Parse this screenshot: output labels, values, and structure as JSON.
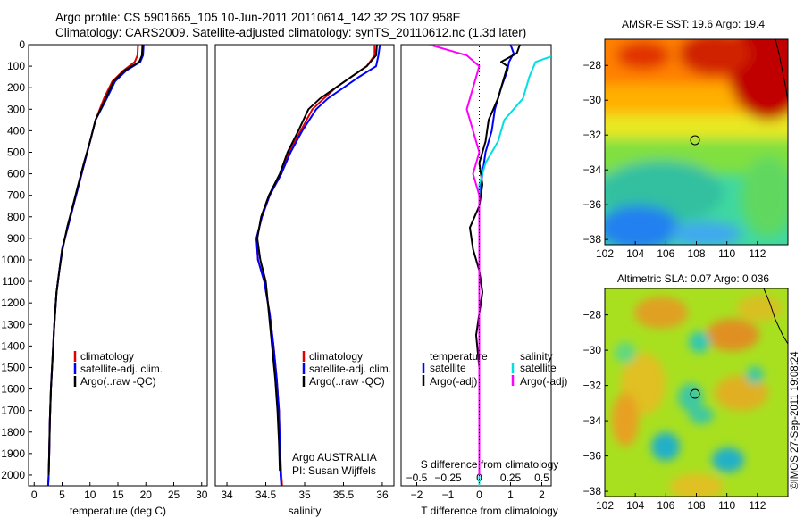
{
  "header": {
    "line1": "Argo profile: CS 5901665_105 10-Jun-2011 20110614_142 32.2S 107.958E",
    "line2": "Climatology: CARS2009. Satellite-adjusted climatology: synTS_20110612.nc (1.3d later)"
  },
  "colors": {
    "climatology": "#e00000",
    "satellite": "#0000ff",
    "argo": "#000000",
    "salinity_satellite": "#00e0e0",
    "salinity_argo": "#ff00ff"
  },
  "chart_data": [
    {
      "type": "line",
      "xlabel": "temperature (deg C)",
      "ylabel": "",
      "xlim": [
        -1,
        31
      ],
      "ylim": [
        2050,
        0
      ],
      "xticks": [
        0,
        5,
        10,
        15,
        20,
        25,
        30
      ],
      "yticks": [
        0,
        100,
        200,
        300,
        400,
        500,
        600,
        700,
        800,
        900,
        1000,
        1100,
        1200,
        1300,
        1400,
        1500,
        1600,
        1700,
        1800,
        1900,
        2000
      ],
      "legend": [
        "climatology",
        "satellite-adj. clim.",
        "Argo(..raw -QC)"
      ],
      "legend_position": "lower-center",
      "series": [
        {
          "name": "climatology",
          "x": [
            18.6,
            18.5,
            18.0,
            16.0,
            14.0,
            12.5,
            11.0,
            10.0,
            9.0,
            8.0,
            7.0,
            6.0,
            5.0,
            4.5,
            4.0,
            3.6,
            3.3,
            3.0,
            2.8,
            2.7,
            2.6,
            2.5
          ],
          "y": [
            0,
            50,
            80,
            120,
            170,
            250,
            350,
            450,
            550,
            650,
            750,
            850,
            950,
            1050,
            1150,
            1300,
            1450,
            1600,
            1750,
            1900,
            2000,
            2050
          ]
        },
        {
          "name": "satellite-adj. clim.",
          "x": [
            19.6,
            19.5,
            19.0,
            16.5,
            14.5,
            13.0,
            11.0,
            10.0,
            9.0,
            8.0,
            7.0,
            6.0,
            5.0,
            4.5,
            4.0,
            3.6,
            3.3,
            3.0,
            2.8,
            2.7,
            2.6,
            2.5
          ],
          "y": [
            0,
            50,
            80,
            120,
            170,
            250,
            350,
            450,
            550,
            650,
            750,
            850,
            950,
            1050,
            1150,
            1300,
            1450,
            1600,
            1750,
            1900,
            2000,
            2050
          ]
        },
        {
          "name": "Argo(..raw -QC)",
          "x": [
            19.4,
            19.3,
            18.8,
            16.2,
            14.2,
            12.8,
            11.0,
            10.0,
            8.9,
            7.9,
            6.9,
            5.9,
            5.1,
            4.5,
            4.0,
            3.6,
            3.3,
            3.0,
            2.8,
            2.7,
            2.6
          ],
          "y": [
            0,
            50,
            80,
            120,
            170,
            250,
            350,
            450,
            550,
            650,
            750,
            850,
            950,
            1050,
            1150,
            1300,
            1450,
            1600,
            1750,
            1900,
            2000
          ]
        }
      ]
    },
    {
      "type": "line",
      "xlabel": "salinity",
      "ylabel": "",
      "xlim": [
        33.85,
        36.15
      ],
      "ylim": [
        2050,
        0
      ],
      "xticks": [
        34,
        34.5,
        35,
        35.5,
        36
      ],
      "legend": [
        "climatology",
        "satellite-adj. clim.",
        "Argo(..raw -QC)"
      ],
      "legend_position": "lower-center",
      "annotation": [
        "Argo AUSTRALIA",
        "PI: Susan Wijffels"
      ],
      "series": [
        {
          "name": "climatology",
          "x": [
            35.9,
            35.9,
            35.8,
            35.6,
            35.4,
            35.25,
            35.1,
            34.95,
            34.8,
            34.7,
            34.55,
            34.45,
            34.38,
            34.4,
            34.48,
            34.55,
            34.6,
            34.64,
            34.67,
            34.68,
            34.7,
            34.71
          ],
          "y": [
            0,
            50,
            100,
            150,
            200,
            250,
            300,
            400,
            500,
            600,
            700,
            800,
            900,
            1000,
            1100,
            1250,
            1400,
            1550,
            1700,
            1850,
            2000,
            2050
          ]
        },
        {
          "name": "satellite-adj. clim.",
          "x": [
            35.97,
            35.95,
            35.92,
            35.7,
            35.5,
            35.3,
            35.15,
            34.97,
            34.82,
            34.7,
            34.55,
            34.45,
            34.38,
            34.4,
            34.48,
            34.55,
            34.6,
            34.64,
            34.67,
            34.68,
            34.69,
            34.7
          ],
          "y": [
            0,
            50,
            100,
            150,
            200,
            250,
            300,
            400,
            500,
            600,
            700,
            800,
            900,
            1000,
            1100,
            1250,
            1400,
            1550,
            1700,
            1850,
            2000,
            2050
          ]
        },
        {
          "name": "Argo(..raw -QC)",
          "x": [
            35.93,
            35.92,
            35.8,
            35.6,
            35.4,
            35.2,
            35.05,
            34.92,
            34.78,
            34.68,
            34.54,
            34.44,
            34.39,
            34.43,
            34.5,
            34.54,
            34.58,
            34.62,
            34.65,
            34.67,
            34.68
          ],
          "y": [
            0,
            50,
            100,
            150,
            200,
            250,
            300,
            400,
            500,
            600,
            700,
            800,
            900,
            1000,
            1100,
            1250,
            1400,
            1550,
            1700,
            1850,
            1980
          ]
        }
      ]
    },
    {
      "type": "line",
      "xlabel": "T difference from climatology",
      "x2label": "S difference from climatology",
      "xlim": [
        -2.5,
        2.3
      ],
      "x2lim": [
        -0.625,
        0.575
      ],
      "ylim": [
        2050,
        0
      ],
      "xticks": [
        -2,
        -1,
        0,
        1,
        2
      ],
      "x2ticks": [
        -0.5,
        -0.25,
        0,
        0.25,
        0.5
      ],
      "x2ticklabels": [
        "-0.5",
        "-0.25",
        "0",
        "0.25",
        "0.5"
      ],
      "legend_temperature": [
        "temperature",
        "satellite",
        "Argo(-adj)"
      ],
      "legend_salinity": [
        "salinity",
        "satellite",
        "Argo(-adj)"
      ],
      "series": [
        {
          "name": "satellite",
          "x": [
            1.0,
            1.1,
            0.95,
            0.9,
            0.7,
            0.5,
            0.4,
            0.2,
            0.1,
            0.0,
            0.0,
            0.0,
            0.0,
            0.0,
            0.0,
            0.0,
            0.0,
            0.0,
            0.0
          ],
          "y": [
            0,
            40,
            80,
            120,
            200,
            300,
            400,
            500,
            600,
            700,
            800,
            900,
            1000,
            1100,
            1300,
            1500,
            1700,
            1900,
            2050
          ]
        },
        {
          "name": "Argo(-adj)",
          "x": [
            1.3,
            1.2,
            0.7,
            0.9,
            0.8,
            0.6,
            0.3,
            0.2,
            0.0,
            0.1,
            0.0,
            -0.3,
            -0.2,
            0.0,
            0.1,
            0.0,
            -0.1,
            0.0,
            0.0,
            0.0
          ],
          "y": [
            0,
            40,
            80,
            100,
            150,
            250,
            350,
            450,
            550,
            650,
            750,
            850,
            950,
            1050,
            1150,
            1250,
            1350,
            1500,
            1700,
            1950
          ]
        },
        {
          "name": "salinity satellite",
          "x": [
            0.8,
            0.65,
            0.45,
            0.4,
            0.35,
            0.2,
            0.15,
            0.05,
            0.0,
            0.0,
            0.0,
            0.0,
            0.0,
            0.0,
            0.0,
            0.0
          ],
          "y": [
            0,
            40,
            80,
            150,
            250,
            350,
            450,
            550,
            650,
            750,
            900,
            1100,
            1300,
            1500,
            1800,
            2050
          ]
        },
        {
          "name": "salinity Argo(-adj)",
          "x": [
            -0.4,
            -0.1,
            0.0,
            -0.05,
            -0.1,
            -0.05,
            0.0,
            -0.05,
            0.0,
            0.0,
            0.0,
            0.0,
            0.0,
            0.0
          ],
          "y": [
            0,
            50,
            100,
            200,
            300,
            400,
            500,
            600,
            700,
            800,
            1000,
            1300,
            1600,
            2000
          ]
        }
      ]
    },
    {
      "type": "heatmap",
      "title": "AMSR-E SST: 19.6 Argo: 19.4",
      "xlim": [
        102,
        114
      ],
      "ylim": [
        -38.3,
        -26.5
      ],
      "xticks": [
        102,
        104,
        106,
        108,
        110,
        112
      ],
      "yticks": [
        -28,
        -30,
        -32,
        -34,
        -36,
        -38
      ],
      "marker": {
        "lon": 107.958,
        "lat": -32.2
      },
      "colormap": "jet"
    },
    {
      "type": "heatmap",
      "title": "Altimetric SLA: 0.07 Argo: 0.036",
      "xlim": [
        102,
        114
      ],
      "ylim": [
        -38.3,
        -26.5
      ],
      "xticks": [
        102,
        104,
        106,
        108,
        110,
        112
      ],
      "yticks": [
        -28,
        -30,
        -32,
        -34,
        -36,
        -38
      ],
      "marker": {
        "lon": 107.958,
        "lat": -32.2
      },
      "colormap": "jet"
    }
  ],
  "side_label": "©IMOS 27-Sep-2011 19:08:24"
}
